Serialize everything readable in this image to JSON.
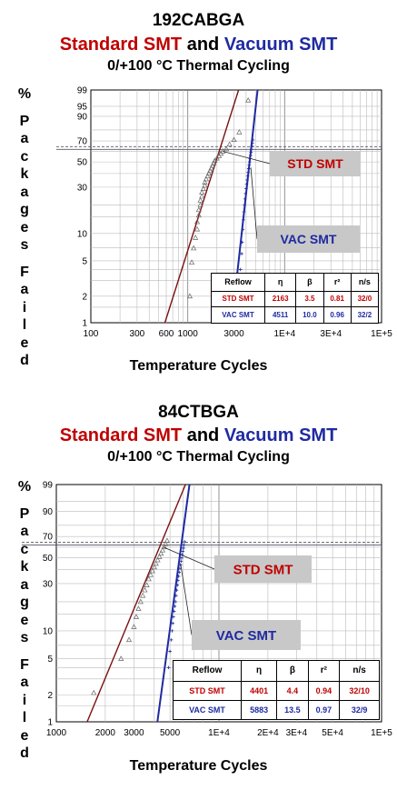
{
  "chart_data": [
    {
      "type": "scatter",
      "title": "192CABGA",
      "subtitle": {
        "part1": "Standard SMT",
        "part2": "and",
        "part3": "Vacuum SMT"
      },
      "subtitle2": "0/+100 °C Thermal Cycling",
      "xlabel": "Temperature Cycles",
      "ylabel": "% Packages Failed",
      "x_scale": "log",
      "y_scale": "weibull",
      "xlim": [
        100,
        100000
      ],
      "ylim": [
        1,
        99
      ],
      "x_ticks": [
        {
          "v": 100,
          "label": "100"
        },
        {
          "v": 300,
          "label": "300"
        },
        {
          "v": 600,
          "label": "600"
        },
        {
          "v": 1000,
          "label": "1000"
        },
        {
          "v": 3000,
          "label": "3000"
        },
        {
          "v": 10000,
          "label": "1E+4"
        },
        {
          "v": 30000,
          "label": "3E+4"
        },
        {
          "v": 100000,
          "label": "1E+5"
        }
      ],
      "y_ticks": [
        1,
        2,
        5,
        10,
        30,
        50,
        70,
        90,
        95,
        99
      ],
      "reference_line": 63.2,
      "callouts": {
        "std": "STD SMT",
        "vac": "VAC SMT"
      },
      "legend_headers": [
        "Reflow",
        "η",
        "β",
        "r²",
        "n/s"
      ],
      "series": [
        {
          "name": "STD SMT",
          "color": "#7a1010",
          "eta": "2163",
          "beta": "3.5",
          "r2": "0.81",
          "ns": "32/0",
          "eta_v": 2163,
          "beta_v": 3.5,
          "points": [
            [
              1050,
              2.0
            ],
            [
              1100,
              4.8
            ],
            [
              1150,
              6.9
            ],
            [
              1200,
              9.0
            ],
            [
              1250,
              11.1
            ],
            [
              1250,
              13.3
            ],
            [
              1300,
              15.6
            ],
            [
              1300,
              17.8
            ],
            [
              1350,
              20.0
            ],
            [
              1350,
              22.2
            ],
            [
              1400,
              24.4
            ],
            [
              1400,
              26.7
            ],
            [
              1450,
              28.9
            ],
            [
              1500,
              31.1
            ],
            [
              1500,
              33.3
            ],
            [
              1550,
              35.6
            ],
            [
              1600,
              37.8
            ],
            [
              1650,
              40.0
            ],
            [
              1700,
              42.2
            ],
            [
              1750,
              44.4
            ],
            [
              1800,
              46.7
            ],
            [
              1850,
              48.9
            ],
            [
              1900,
              51.1
            ],
            [
              2000,
              53.3
            ],
            [
              2100,
              55.6
            ],
            [
              2200,
              57.8
            ],
            [
              2300,
              60.0
            ],
            [
              2500,
              62.2
            ],
            [
              2700,
              66.7
            ],
            [
              3000,
              71.1
            ],
            [
              3400,
              78.0
            ],
            [
              4200,
              97.0
            ]
          ]
        },
        {
          "name": "VAC SMT",
          "color": "#1f2aa0",
          "eta": "4511",
          "beta": "10.0",
          "r2": "0.96",
          "ns": "32/2",
          "eta_v": 4511,
          "beta_v": 10.0,
          "points": [
            [
              3500,
              4.0
            ],
            [
              3600,
              6.0
            ],
            [
              3650,
              8.0
            ],
            [
              3700,
              11.0
            ],
            [
              3750,
              14.0
            ],
            [
              3800,
              17.0
            ],
            [
              3850,
              20.0
            ],
            [
              3900,
              23.0
            ],
            [
              3950,
              26.0
            ],
            [
              4000,
              29.0
            ],
            [
              4050,
              32.0
            ],
            [
              4100,
              35.0
            ],
            [
              4150,
              38.0
            ],
            [
              4200,
              41.0
            ],
            [
              4250,
              44.0
            ],
            [
              4300,
              47.0
            ],
            [
              4350,
              50.0
            ],
            [
              4400,
              53.0
            ],
            [
              4450,
              56.0
            ],
            [
              4500,
              59.0
            ],
            [
              4550,
              62.0
            ],
            [
              4600,
              65.0
            ],
            [
              4650,
              68.0
            ],
            [
              4700,
              71.0
            ]
          ]
        }
      ]
    },
    {
      "type": "scatter",
      "title": "84CTBGA",
      "subtitle": {
        "part1": "Standard SMT",
        "part2": "and",
        "part3": "Vacuum SMT"
      },
      "subtitle2": "0/+100 °C Thermal Cycling",
      "xlabel": "Temperature Cycles",
      "ylabel": "% Packages Failed",
      "x_scale": "log",
      "y_scale": "weibull",
      "xlim": [
        1000,
        100000
      ],
      "ylim": [
        1,
        99
      ],
      "x_ticks": [
        {
          "v": 1000,
          "label": "1000"
        },
        {
          "v": 2000,
          "label": "2000"
        },
        {
          "v": 3000,
          "label": "3000"
        },
        {
          "v": 5000,
          "label": "5000"
        },
        {
          "v": 10000,
          "label": "1E+4"
        },
        {
          "v": 20000,
          "label": "2E+4"
        },
        {
          "v": 30000,
          "label": "3E+4"
        },
        {
          "v": 50000,
          "label": "5E+4"
        },
        {
          "v": 100000,
          "label": "1E+5"
        }
      ],
      "y_ticks": [
        1,
        2,
        5,
        10,
        30,
        50,
        70,
        90,
        99
      ],
      "reference_line": 63.2,
      "callouts": {
        "std": "STD SMT",
        "vac": "VAC SMT"
      },
      "legend_headers": [
        "Reflow",
        "η",
        "β",
        "r²",
        "n/s"
      ],
      "series": [
        {
          "name": "STD SMT",
          "color": "#7a1010",
          "eta": "4401",
          "beta": "4.4",
          "r2": "0.94",
          "ns": "32/10",
          "eta_v": 4401,
          "beta_v": 4.4,
          "points": [
            [
              1700,
              2.1
            ],
            [
              2500,
              5.0
            ],
            [
              2800,
              8.0
            ],
            [
              3000,
              11.0
            ],
            [
              3100,
              14.0
            ],
            [
              3200,
              17.0
            ],
            [
              3300,
              20.0
            ],
            [
              3400,
              23.0
            ],
            [
              3500,
              26.0
            ],
            [
              3600,
              29.0
            ],
            [
              3700,
              33.0
            ],
            [
              3800,
              36.0
            ],
            [
              3900,
              39.0
            ],
            [
              4000,
              42.0
            ],
            [
              4100,
              45.0
            ],
            [
              4200,
              48.0
            ],
            [
              4300,
              51.0
            ],
            [
              4400,
              54.0
            ],
            [
              4500,
              57.0
            ],
            [
              4600,
              60.0
            ],
            [
              4700,
              63.0
            ],
            [
              4800,
              66.0
            ]
          ]
        },
        {
          "name": "VAC SMT",
          "color": "#1f2aa0",
          "eta": "5883",
          "beta": "13.5",
          "r2": "0.97",
          "ns": "32/9",
          "eta_v": 5883,
          "beta_v": 13.5,
          "points": [
            [
              4900,
              4.0
            ],
            [
              5000,
              6.0
            ],
            [
              5100,
              8.0
            ],
            [
              5150,
              10.0
            ],
            [
              5200,
              12.0
            ],
            [
              5250,
              14.0
            ],
            [
              5300,
              16.0
            ],
            [
              5350,
              18.0
            ],
            [
              5400,
              20.0
            ],
            [
              5450,
              23.0
            ],
            [
              5500,
              26.0
            ],
            [
              5550,
              29.0
            ],
            [
              5600,
              32.0
            ],
            [
              5650,
              35.0
            ],
            [
              5700,
              38.0
            ],
            [
              5750,
              41.0
            ],
            [
              5800,
              44.0
            ],
            [
              5850,
              47.0
            ],
            [
              5900,
              50.0
            ],
            [
              5950,
              53.0
            ],
            [
              6000,
              56.0
            ],
            [
              6050,
              59.0
            ],
            [
              6100,
              62.0
            ],
            [
              6150,
              65.0
            ]
          ]
        }
      ]
    }
  ]
}
